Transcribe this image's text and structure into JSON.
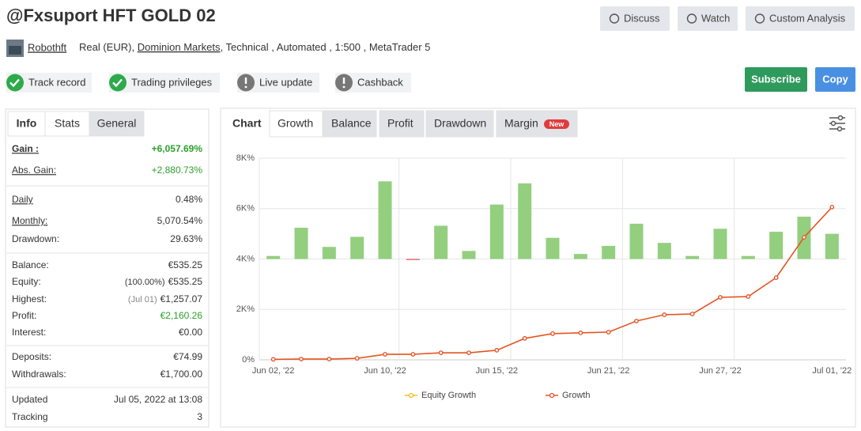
{
  "header": {
    "title": "@Fxsuport HFT GOLD 02",
    "buttons": [
      "Discuss",
      "Watch",
      "Custom Analysis"
    ],
    "owner": "Robothft",
    "account": "Real (EUR),",
    "broker": "Dominion Markets",
    "details": ", Technical , Automated , 1:500 , MetaTrader 5",
    "badges": [
      {
        "label": "Track record",
        "status": "ok"
      },
      {
        "label": "Trading privileges",
        "status": "ok"
      },
      {
        "label": "Live update",
        "status": "info"
      },
      {
        "label": "Cashback",
        "status": "info"
      }
    ],
    "subscribe": "Subscribe",
    "copy": "Copy"
  },
  "stats_tabs": [
    "Info",
    "Stats",
    "General"
  ],
  "stats": [
    [
      {
        "label": "Gain :",
        "value": "+6,057.69%",
        "color": "#2ca02c",
        "underline": true,
        "bold": true
      },
      {
        "label": "Abs. Gain:",
        "value": "+2,880.73%",
        "color": "#2ca02c",
        "underline": true
      }
    ],
    [
      {
        "label": "Daily",
        "value": "0.48%",
        "underline": true
      },
      {
        "label": "Monthly:",
        "value": "5,070.54%",
        "underline": true
      },
      {
        "label": "Drawdown:",
        "value": "29.63%"
      }
    ],
    [
      {
        "label": "Balance:",
        "value": "€535.25"
      },
      {
        "label": "Equity:",
        "note": "(100.00%)",
        "value": "€535.25"
      },
      {
        "label": "Highest:",
        "note": "(Jul 01)",
        "value": "€1,257.07"
      },
      {
        "label": "Profit:",
        "value": "€2,160.26",
        "color": "#2ca02c"
      },
      {
        "label": "Interest:",
        "value": "€0.00"
      }
    ],
    [
      {
        "label": "Deposits:",
        "value": "€74.99"
      },
      {
        "label": "Withdrawals:",
        "value": "€1,700.00"
      }
    ],
    [
      {
        "label": "Updated",
        "value": "Jul 05, 2022 at 13:08"
      },
      {
        "label": "Tracking",
        "value": "3"
      }
    ]
  ],
  "chart_label": "Chart",
  "chart_tabs": [
    "Growth",
    "Balance",
    "Profit",
    "Drawdown",
    "Margin"
  ],
  "new_badge": "New",
  "chart_data": {
    "type": "line",
    "categories": [
      "Jun 02, '22",
      null,
      null,
      null,
      "Jun 10, '22",
      null,
      null,
      null,
      "Jun 15, '22",
      null,
      null,
      null,
      "Jun 21, '22",
      null,
      null,
      null,
      "Jun 27, '22",
      null,
      null,
      null,
      "Jul 01, '22"
    ],
    "ylim": [
      0,
      8000
    ],
    "yticks": [
      {
        "value": 0,
        "label": "0%"
      },
      {
        "value": 2000,
        "label": "2K%"
      },
      {
        "value": 4000,
        "label": "4K%"
      },
      {
        "value": 6000,
        "label": "6K%"
      },
      {
        "value": 8000,
        "label": "8K%"
      }
    ],
    "y2lim": [
      -100,
      100
    ],
    "grid": true,
    "legend": "bottom",
    "bars": {
      "axis": "y2",
      "color": "#93cf7f",
      "negative_color": "#e05a5a",
      "values": [
        3,
        31,
        12,
        22,
        77,
        -1,
        33,
        8,
        54,
        75,
        21,
        5,
        13,
        35,
        16,
        3,
        30,
        3,
        27,
        42,
        25
      ]
    },
    "series": [
      {
        "name": "Equity Growth",
        "color": "#f0c020",
        "values": [
          20,
          30,
          30,
          60,
          220,
          220,
          280,
          280,
          380,
          850,
          1040,
          1070,
          1100,
          1540,
          1790,
          1820,
          2480,
          2510,
          3260,
          4860,
          6060
        ]
      },
      {
        "name": "Growth",
        "color": "#e4502a",
        "values": [
          20,
          30,
          30,
          60,
          220,
          220,
          280,
          280,
          380,
          850,
          1040,
          1070,
          1100,
          1540,
          1790,
          1820,
          2480,
          2510,
          3260,
          4860,
          6060
        ]
      }
    ]
  }
}
